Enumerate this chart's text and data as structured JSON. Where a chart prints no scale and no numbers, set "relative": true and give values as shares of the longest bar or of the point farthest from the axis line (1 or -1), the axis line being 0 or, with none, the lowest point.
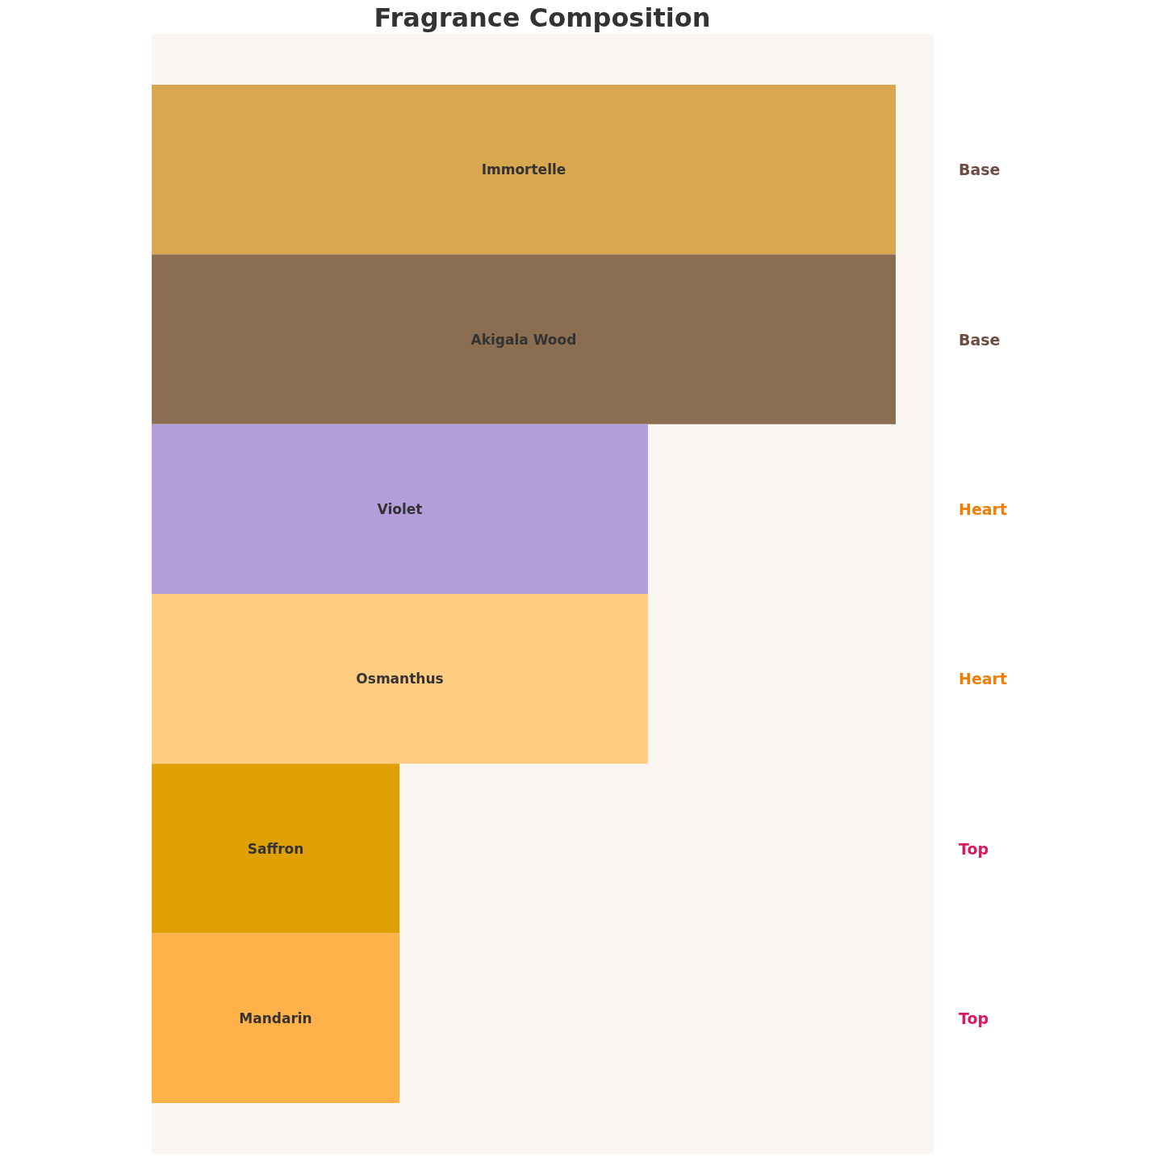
{
  "chart_data": {
    "type": "bar",
    "title": "Fragrance Composition",
    "orientation": "horizontal",
    "relative": true,
    "categories": [
      "Immortelle",
      "Akigala Wood",
      "Violet",
      "Osmanthus",
      "Saffron",
      "Mandarin"
    ],
    "values": [
      1,
      1,
      0.667,
      0.667,
      0.333,
      0.333
    ],
    "colors": [
      "#d9a74f",
      "#8b6e52",
      "#b39ddb",
      "#ffcc80",
      "#e0a106",
      "#ffb14a"
    ],
    "annotations": [
      "Base",
      "Base",
      "Heart",
      "Heart",
      "Top",
      "Top"
    ]
  }
}
